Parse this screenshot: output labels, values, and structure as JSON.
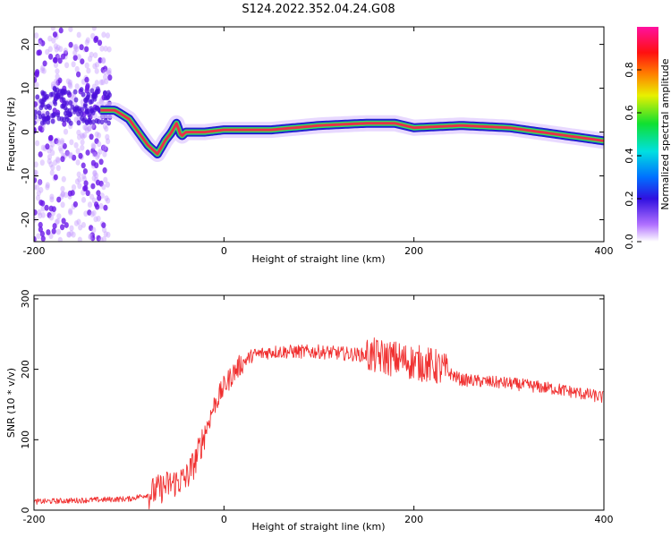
{
  "title": "S124.2022.352.04.24.G08",
  "colors": {
    "snr_line": "#f03030",
    "band_core": "#e83048",
    "band_outer": "#2020d0",
    "band_fill": "#30e060",
    "scatter": "#6a18e8"
  },
  "chart_data": [
    {
      "type": "heatmap",
      "title": "S124.2022.352.04.24.G08",
      "xlabel": "Height of straight line (km)",
      "ylabel": "Frequency (Hz)",
      "xlim": [
        -200,
        400
      ],
      "ylim": [
        -25,
        24
      ],
      "xticks": [
        -200,
        0,
        200,
        400
      ],
      "yticks": [
        -20,
        -10,
        0,
        10,
        20
      ],
      "colorbar": {
        "label": "Normalized spectral amplitude",
        "range": [
          0,
          1
        ],
        "ticks": [
          0.0,
          0.2,
          0.4,
          0.6,
          0.8
        ],
        "colormap": "rainbow (white to violet, blue, cyan, green, yellow, red, magenta)"
      },
      "dominant_frequency": {
        "x": [
          -130,
          -115,
          -100,
          -90,
          -80,
          -70,
          -62,
          -55,
          -50,
          -45,
          -40,
          -35,
          -30,
          -20,
          0,
          50,
          100,
          150,
          180,
          200,
          250,
          300,
          350,
          400
        ],
        "y": [
          5,
          5,
          3,
          0,
          -3,
          -5,
          -2,
          0,
          2,
          -1,
          0,
          0,
          0,
          0,
          0.5,
          0.5,
          1.5,
          2,
          2,
          1,
          1.5,
          1,
          -0.5,
          -2
        ]
      },
      "noise_region_x": [
        -200,
        -120
      ]
    },
    {
      "type": "line",
      "xlabel": "Height of straight line (km)",
      "ylabel": "SNR (10 * v/v)",
      "xlim": [
        -200,
        400
      ],
      "ylim": [
        0,
        305
      ],
      "xticks": [
        -200,
        0,
        200,
        400
      ],
      "yticks": [
        0,
        100,
        200,
        300
      ],
      "series": [
        {
          "x": [
            -200,
            -150,
            -100,
            -80,
            -60,
            -40,
            -30,
            -20,
            -10,
            0,
            10,
            20,
            30,
            50,
            100,
            150,
            180,
            200,
            220,
            230,
            250,
            300,
            350,
            400
          ],
          "values": [
            12,
            14,
            16,
            22,
            35,
            45,
            70,
            110,
            150,
            175,
            195,
            210,
            220,
            225,
            225,
            220,
            215,
            210,
            205,
            200,
            185,
            180,
            172,
            160
          ]
        }
      ]
    }
  ]
}
